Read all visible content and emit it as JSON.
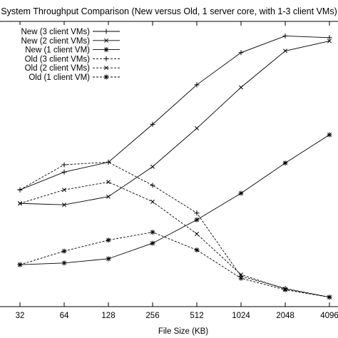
{
  "chart_data": {
    "type": "line",
    "title": "System Throughput Comparison (New versus Old, 1 server core, with 1-3 client VMs)",
    "xlabel": "File Size (KB)",
    "ylabel": "",
    "x_scale": "log2",
    "categories": [
      "32",
      "64",
      "128",
      "256",
      "512",
      "1024",
      "2048",
      "4096"
    ],
    "y_range": [
      0,
      100
    ],
    "grid": false,
    "legend_placement": "top-left",
    "series": [
      {
        "name": "New (3 client VMs)",
        "marker": "plus",
        "dash": "solid",
        "values": [
          36.6,
          42.9,
          46.4,
          59.8,
          73.8,
          85.2,
          91.1,
          90.5
        ]
      },
      {
        "name": "New (2 client VMs)",
        "marker": "cross",
        "dash": "solid",
        "values": [
          31.8,
          31.3,
          34.2,
          44.8,
          58.4,
          72.9,
          85.8,
          89.3
        ]
      },
      {
        "name": "New (1 client VM)",
        "marker": "star",
        "dash": "solid",
        "values": [
          10.1,
          10.7,
          12.2,
          17.7,
          26.0,
          35.4,
          46.1,
          56.1
        ]
      },
      {
        "name": "Old (3 client VMs)",
        "marker": "plus",
        "dash": "dashed",
        "values": [
          36.6,
          45.5,
          46.4,
          38.2,
          28.4,
          6.0,
          1.7,
          -1.4
        ]
      },
      {
        "name": "Old (2 client VMs)",
        "marker": "cross",
        "dash": "dashed",
        "values": [
          31.8,
          36.6,
          39.4,
          32.4,
          21.0,
          6.6,
          1.5,
          -1.4
        ]
      },
      {
        "name": "Old (1 client VM)",
        "marker": "star",
        "dash": "dashed",
        "values": [
          10.1,
          14.9,
          18.8,
          21.6,
          15.3,
          5.3,
          1.2,
          -1.4
        ]
      }
    ]
  }
}
